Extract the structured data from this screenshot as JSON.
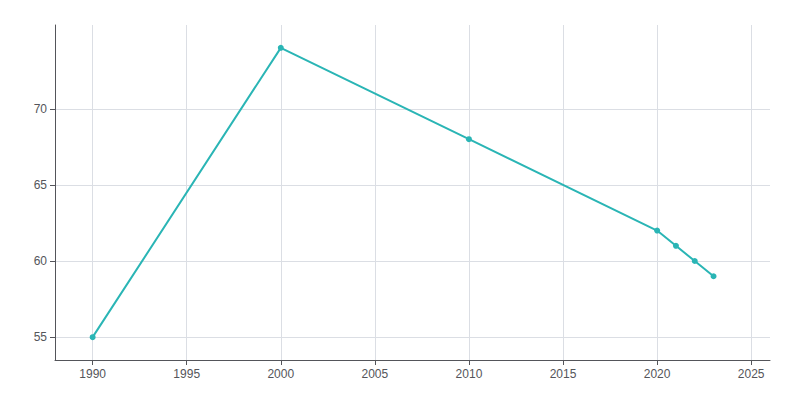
{
  "chart_data": {
    "type": "line",
    "x": [
      1990,
      2000,
      2010,
      2020,
      2021,
      2022,
      2023
    ],
    "values": [
      55,
      74,
      68,
      62,
      61,
      60,
      59
    ],
    "color": "#2ab5b5",
    "marker": "circle",
    "xlim": [
      1988,
      2026
    ],
    "ylim": [
      53.5,
      75.5
    ],
    "xticks": [
      1990,
      1995,
      2000,
      2005,
      2010,
      2015,
      2020,
      2025
    ],
    "yticks": [
      55,
      60,
      65,
      70
    ],
    "grid": true
  }
}
